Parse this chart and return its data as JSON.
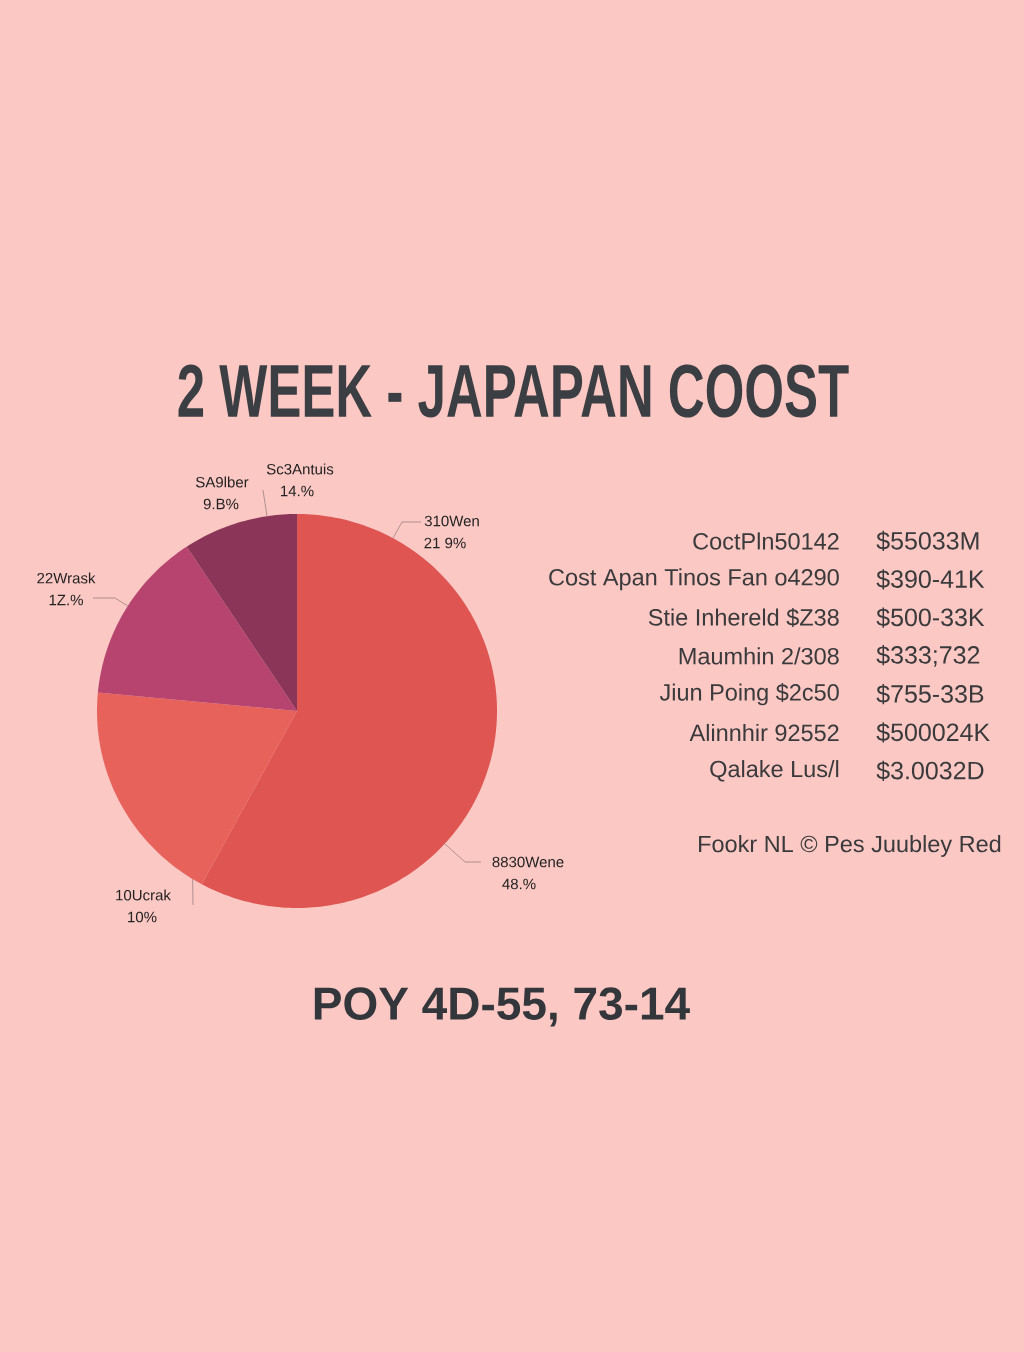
{
  "chart_data": [
    {
      "type": "pie",
      "title": "2 WEEK - JAPAPAN COOST",
      "categories": [
        "8830Wene",
        "10Ucrak",
        "22Wrask",
        "SA9lber"
      ],
      "values": [
        57.9,
        18.6,
        14.2,
        9.3
      ],
      "colors": [
        "#de5552",
        "#e8625c",
        "#b6446f",
        "#8b3658"
      ],
      "annotations": [
        "Sc3Antuis",
        "14.%",
        "9.B%",
        "310Wen",
        "21 9%",
        "1Z.%",
        "48.%",
        "10%",
        "POY 4D-55, 73-14"
      ]
    },
    {
      "type": "other",
      "annotations": [
        "CoctPln50142",
        "$55033M",
        "Cost Apan Tinos Fan o4290",
        "$390-41K",
        "Stie Inhereld $Z38",
        "$500-33K",
        "Maumhin 2/308",
        "$333;732",
        "Jiun Poing $2c50",
        "$755-33B",
        "Alinnhir 92552",
        "$500024K",
        "Qalake Lus/l",
        "$3.0032D",
        "Fookr NL © Pes Juubley Red"
      ]
    }
  ]
}
